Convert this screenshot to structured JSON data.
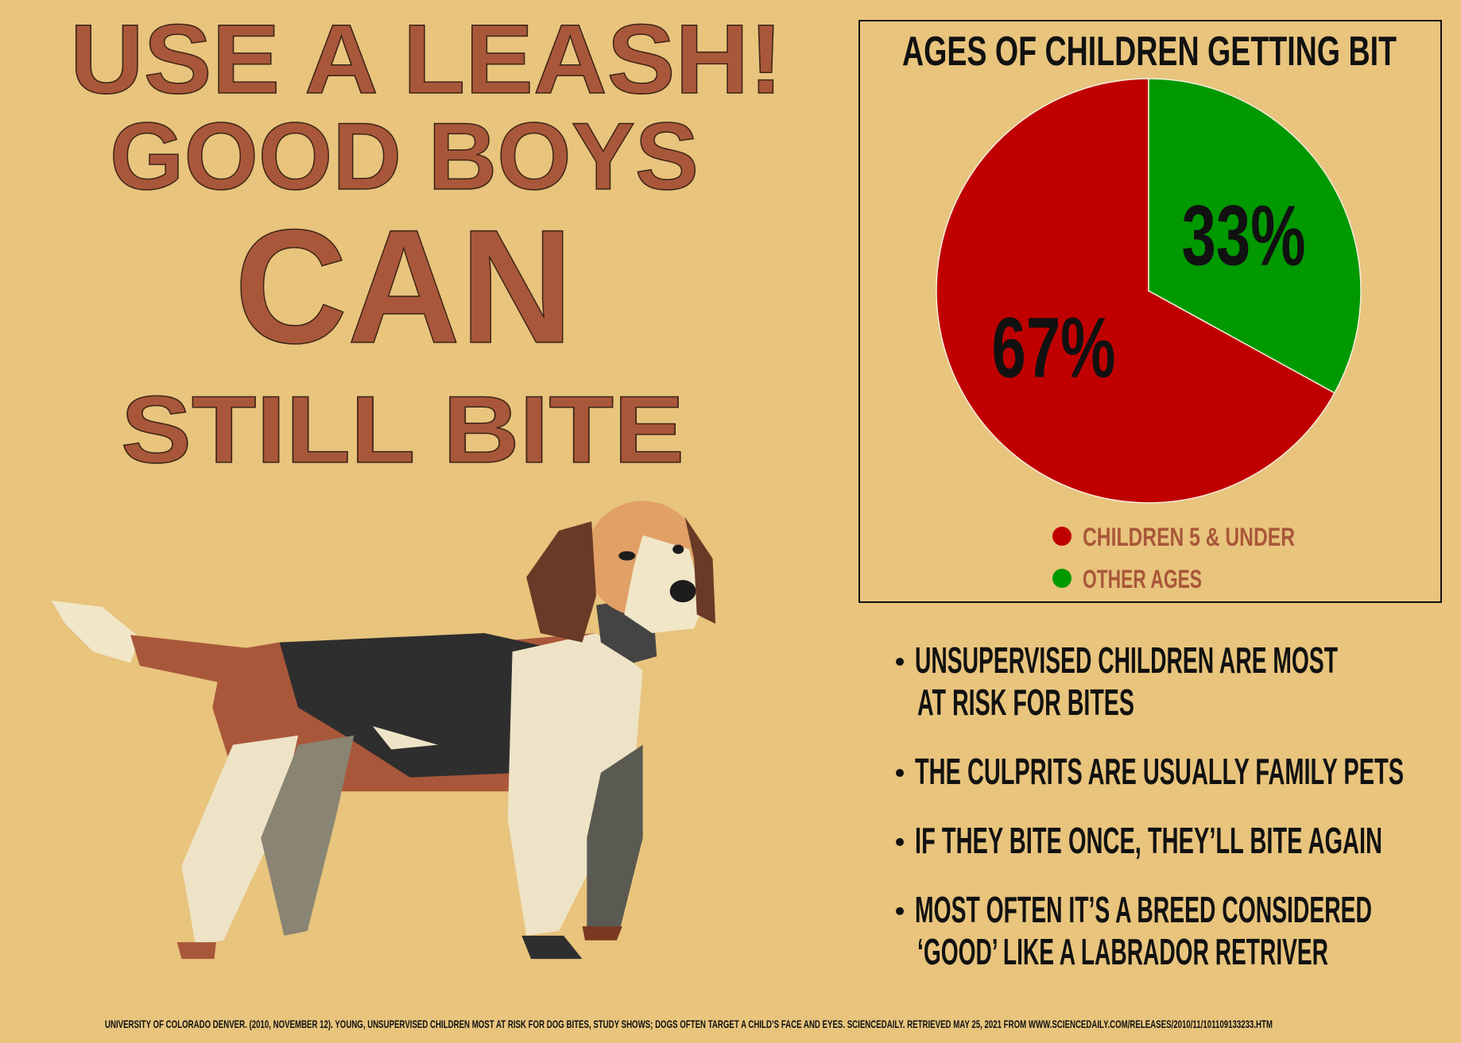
{
  "headline": [
    "USE A LEASH!",
    "GOOD BOYS",
    "CAN",
    "STILL BITE"
  ],
  "chart_data": {
    "type": "pie",
    "title": "AGES OF CHILDREN GETTING BIT",
    "categories": [
      "CHILDREN 5 & UNDER",
      "OTHER AGES"
    ],
    "values": [
      67,
      33
    ],
    "value_labels": [
      "67%",
      "33%"
    ],
    "colors": [
      "#c00000",
      "#009900"
    ]
  },
  "bullets": [
    [
      "UNSUPERVISED CHILDREN ARE MOST",
      "AT RISK FOR BITES"
    ],
    [
      "THE CULPRITS ARE USUALLY FAMILY PETS"
    ],
    [
      "IF THEY BITE ONCE, THEY’LL BITE AGAIN"
    ],
    [
      "MOST OFTEN IT’S A BREED CONSIDERED",
      "‘GOOD’ LIKE A LABRADOR RETRIVER"
    ]
  ],
  "citation": "UNIVERSITY OF COLORADO DENVER. (2010, NOVEMBER 12). YOUNG, UNSUPERVISED CHILDREN MOST AT RISK FOR DOG BITES, STUDY SHOWS; DOGS OFTEN TARGET A CHILD’S FACE AND EYES. SCIENCEDAILY. RETRIEVED MAY 25, 2021 FROM  WWW.SCIENCEDAILY.COM/RELEASES/2010/11/101109133233.HTM"
}
